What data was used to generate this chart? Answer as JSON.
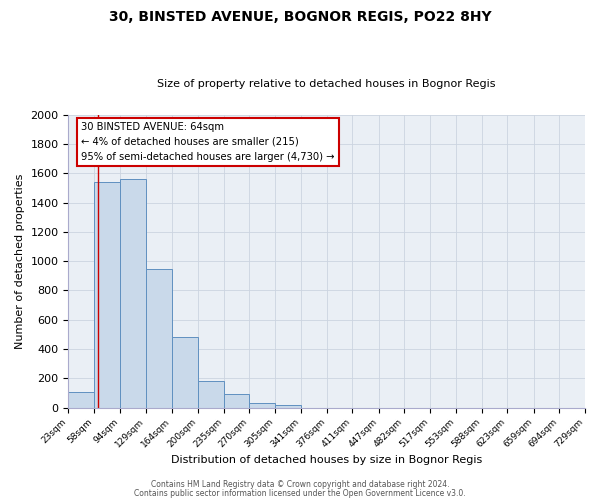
{
  "title": "30, BINSTED AVENUE, BOGNOR REGIS, PO22 8HY",
  "subtitle": "Size of property relative to detached houses in Bognor Regis",
  "xlabel": "Distribution of detached houses by size in Bognor Regis",
  "ylabel": "Number of detached properties",
  "bin_edges": [
    23,
    58,
    94,
    129,
    164,
    200,
    235,
    270,
    305,
    341,
    376,
    411,
    447,
    482,
    517,
    553,
    588,
    623,
    659,
    694,
    729
  ],
  "bin_heights": [
    110,
    1540,
    1560,
    950,
    485,
    180,
    95,
    35,
    20,
    0,
    0,
    0,
    0,
    0,
    0,
    0,
    0,
    0,
    0,
    0
  ],
  "bar_color": "#c9d9ea",
  "bar_edge_color": "#6090c0",
  "ylim": [
    0,
    2000
  ],
  "yticks": [
    0,
    200,
    400,
    600,
    800,
    1000,
    1200,
    1400,
    1600,
    1800,
    2000
  ],
  "property_line_x": 64,
  "property_line_color": "#cc0000",
  "annotation_line1": "30 BINSTED AVENUE: 64sqm",
  "annotation_line2": "← 4% of detached houses are smaller (215)",
  "annotation_line3": "95% of semi-detached houses are larger (4,730) →",
  "footer_text1": "Contains HM Land Registry data © Crown copyright and database right 2024.",
  "footer_text2": "Contains public sector information licensed under the Open Government Licence v3.0.",
  "tick_labels": [
    "23sqm",
    "58sqm",
    "94sqm",
    "129sqm",
    "164sqm",
    "200sqm",
    "235sqm",
    "270sqm",
    "305sqm",
    "341sqm",
    "376sqm",
    "411sqm",
    "447sqm",
    "482sqm",
    "517sqm",
    "553sqm",
    "588sqm",
    "623sqm",
    "659sqm",
    "694sqm",
    "729sqm"
  ],
  "grid_color": "#ccd4e0",
  "background_color": "#eaeff5",
  "fig_bg": "#ffffff"
}
